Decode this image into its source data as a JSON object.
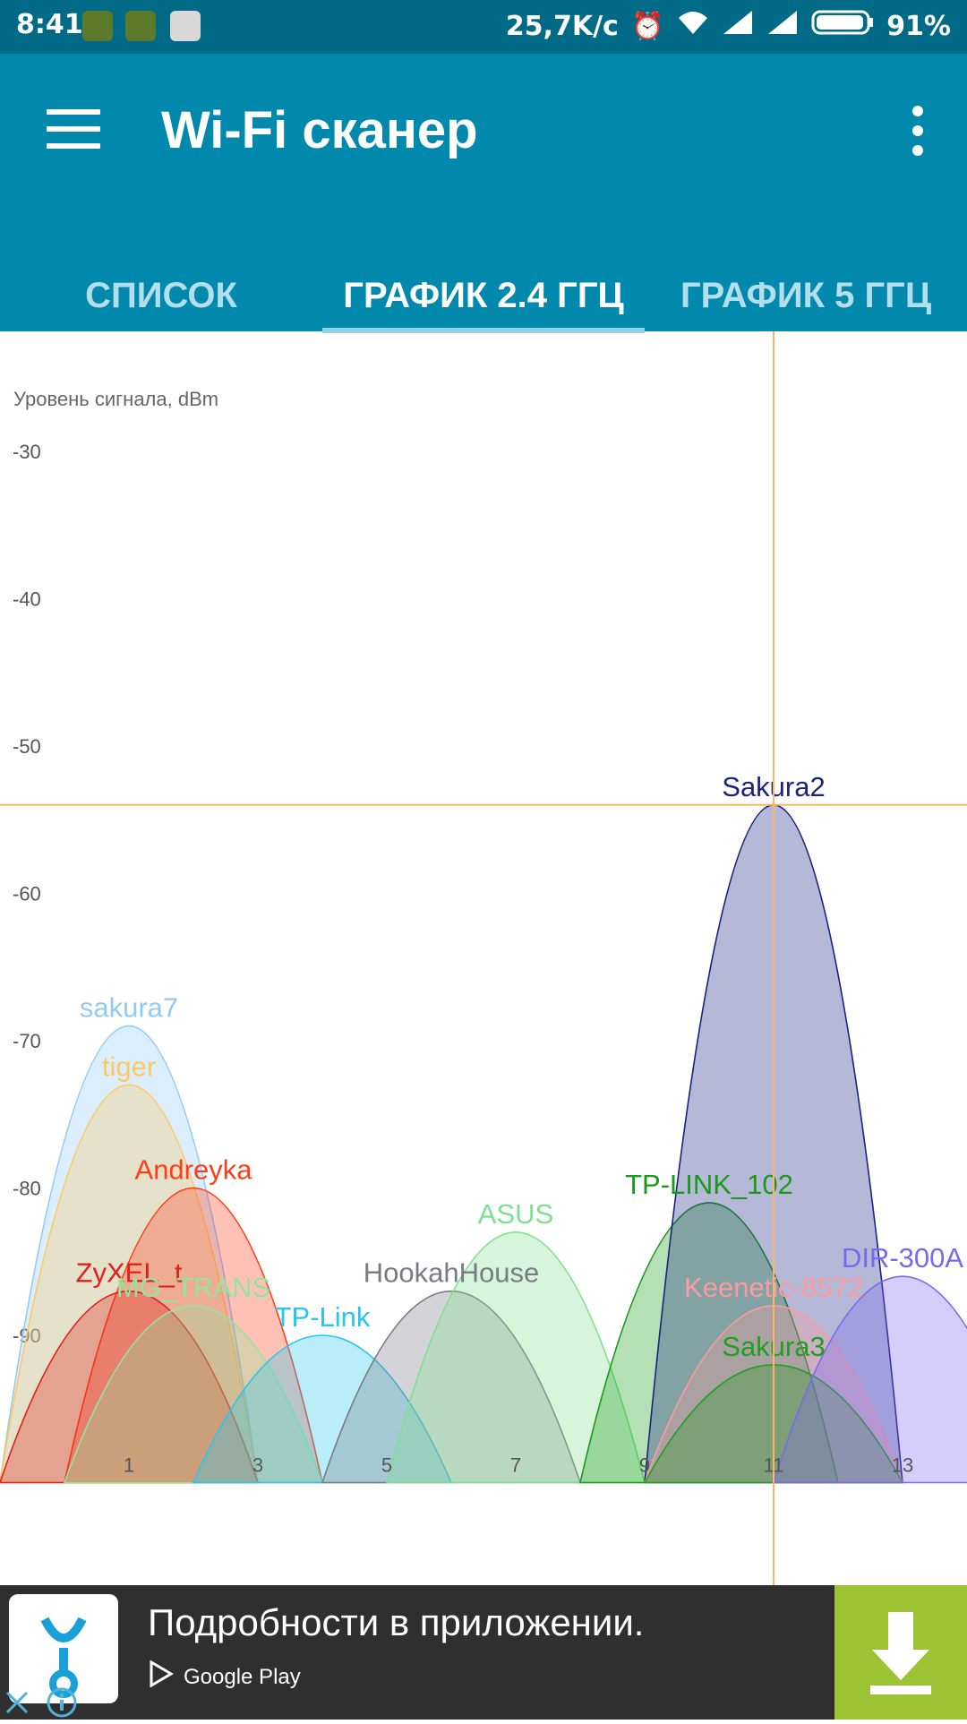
{
  "status_bar": {
    "time": "8:41",
    "speed": "25,7K/c",
    "battery": "91%"
  },
  "app_bar": {
    "title": "Wi-Fi сканер",
    "menu_icon": "hamburger-menu-icon",
    "more_icon": "more-vert-icon"
  },
  "tabs": [
    {
      "label": "СПИСОК",
      "active": false
    },
    {
      "label": "ГРАФИК 2.4 ГГЦ",
      "active": true
    },
    {
      "label": "ГРАФИК 5 ГГЦ",
      "active": false
    }
  ],
  "chart_data": {
    "type": "area",
    "ylabel": "Уровень сигнала, dBm",
    "ylim": [
      -100,
      -20
    ],
    "xlim": [
      -1,
      14.5
    ],
    "y_ticks": [
      -30,
      -40,
      -50,
      -60,
      -70,
      -80,
      -90
    ],
    "x_ticks": [
      1,
      3,
      5,
      7,
      9,
      11,
      13
    ],
    "crosshair": {
      "channel": 11,
      "level": -54,
      "color": "#ffb463"
    },
    "series": [
      {
        "name": "sakura7",
        "channel": 1,
        "level": -69,
        "color": "#90caf9"
      },
      {
        "name": "tiger",
        "channel": 1,
        "level": -73,
        "color": "#ffc860"
      },
      {
        "name": "Andreyka",
        "channel": 2,
        "level": -80,
        "color": "#ff3d18"
      },
      {
        "name": "ZyXEL_t",
        "channel": 1,
        "level": -87,
        "color": "#e0201a"
      },
      {
        "name": "MG_TRANS",
        "channel": 2,
        "level": -88,
        "color": "#90e6a0"
      },
      {
        "name": "TP-Link",
        "channel": 4,
        "level": -90,
        "color": "#26c6f0"
      },
      {
        "name": "HookahHouse",
        "channel": 6,
        "level": -87,
        "color": "#7a7a86"
      },
      {
        "name": "ASUS",
        "channel": 7,
        "level": -83,
        "color": "#7ee08e"
      },
      {
        "name": "TP-LINK_102",
        "channel": 10,
        "level": -81,
        "color": "#1a9a1a"
      },
      {
        "name": "Sakura2",
        "channel": 11,
        "level": -54,
        "color": "#1a237e"
      },
      {
        "name": "Keenetic-8572",
        "channel": 11,
        "level": -88,
        "color": "#ff9aa0"
      },
      {
        "name": "Sakura3",
        "channel": 11,
        "level": -92,
        "color": "#1fa01f"
      },
      {
        "name": "DIR-300A",
        "channel": 13,
        "level": -86,
        "color": "#7b68ee"
      }
    ]
  },
  "ad": {
    "text": "Подробности в приложении.",
    "store": "Google Play",
    "accent": "#9cc334"
  }
}
